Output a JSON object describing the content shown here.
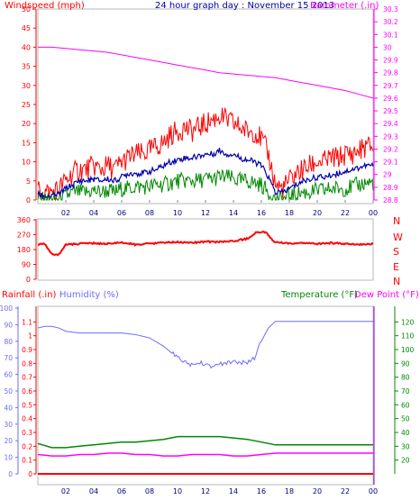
{
  "header": {
    "wind_label": "Windspeed (mph)",
    "title": "24 hour graph day : November 15 2013",
    "baro_label": "Barometer (.in)"
  },
  "colors": {
    "wind_gust": "#ff0000",
    "wind_avg": "#0000aa",
    "wind_low": "#008800",
    "barometer": "#ff00ff",
    "direction": "#ff0000",
    "rain": "#ff0000",
    "humidity": "#6b6bff",
    "temperature": "#008800",
    "dewpoint": "#ff00ff",
    "title": "#0000aa",
    "axis_purple": "#9900cc",
    "hour_labels": "#000088"
  },
  "panel2": {
    "compass": [
      "N",
      "W",
      "S",
      "E",
      "N"
    ]
  },
  "panel3": {
    "rain_label": "Rainfall (.in)",
    "hum_label": "Humidity (%)",
    "temp_label": "Temperature (°F)",
    "dew_label": "Dew Point (°F)"
  },
  "chart_data": [
    {
      "type": "line",
      "name": "wind-barometer",
      "x_labels": [
        "02",
        "04",
        "06",
        "08",
        "10",
        "12",
        "14",
        "16",
        "18",
        "20",
        "22",
        "00"
      ],
      "xlim": [
        0,
        24
      ],
      "y_left": {
        "ylim": [
          0,
          50
        ],
        "ticks": [
          0,
          5,
          10,
          15,
          20,
          25,
          30,
          35,
          40,
          45,
          50
        ]
      },
      "y_right": {
        "ylim": [
          28.8,
          30.3
        ],
        "ticks": [
          "28.8",
          "28.9",
          "29",
          "29.1",
          "29.2",
          "29.3",
          "29.4",
          "29.5",
          "29.6",
          "29.7",
          "29.8",
          "29.9",
          "30",
          "30.1",
          "30.2",
          "30.3"
        ]
      },
      "series": [
        {
          "name": "gust",
          "x": [
            0,
            0.5,
            1,
            1.5,
            2,
            2.5,
            3,
            3.5,
            4,
            4.5,
            5,
            5.5,
            6,
            6.5,
            7,
            7.5,
            8,
            8.5,
            9,
            9.5,
            10,
            10.5,
            11,
            11.5,
            12,
            12.5,
            13,
            13.5,
            14,
            14.5,
            15,
            15.5,
            16,
            16.5,
            17,
            17.5,
            18,
            18.5,
            19,
            19.5,
            20,
            20.5,
            21,
            21.5,
            22,
            22.5,
            23,
            23.5,
            24
          ],
          "values": [
            3,
            2,
            2,
            3,
            5,
            7,
            8,
            8,
            9,
            8,
            9,
            8,
            10,
            11,
            12,
            12,
            13,
            14,
            15,
            17,
            18,
            19,
            18,
            19,
            20,
            21,
            22,
            21,
            20,
            19,
            18,
            18,
            16,
            12,
            4,
            3,
            5,
            7,
            8,
            9,
            10,
            10,
            11,
            11,
            12,
            12,
            13,
            14,
            14
          ]
        },
        {
          "name": "average",
          "x": [
            0,
            0.5,
            1,
            1.5,
            2,
            2.5,
            3,
            3.5,
            4,
            4.5,
            5,
            5.5,
            6,
            6.5,
            7,
            7.5,
            8,
            8.5,
            9,
            9.5,
            10,
            10.5,
            11,
            11.5,
            12,
            12.5,
            13,
            13.5,
            14,
            14.5,
            15,
            15.5,
            16,
            16.5,
            17,
            17.5,
            18,
            18.5,
            19,
            19.5,
            20,
            20.5,
            21,
            21.5,
            22,
            22.5,
            23,
            23.5,
            24
          ],
          "values": [
            1.5,
            1,
            1,
            1.5,
            3,
            4,
            5,
            5,
            5.5,
            5,
            5.5,
            5,
            6,
            7,
            7,
            7,
            7.5,
            8,
            9,
            10,
            10.5,
            11,
            11,
            11.5,
            12,
            12,
            13,
            12,
            12,
            11,
            10.5,
            10,
            9,
            6,
            2,
            2,
            3,
            4,
            5,
            5.5,
            6,
            6,
            6.5,
            7,
            7.5,
            8,
            8.5,
            9,
            9
          ]
        },
        {
          "name": "low",
          "x": [
            0,
            0.5,
            1,
            1.5,
            2,
            2.5,
            3,
            3.5,
            4,
            4.5,
            5,
            5.5,
            6,
            6.5,
            7,
            7.5,
            8,
            8.5,
            9,
            9.5,
            10,
            10.5,
            11,
            11.5,
            12,
            12.5,
            13,
            13.5,
            14,
            14.5,
            15,
            15.5,
            16,
            16.5,
            17,
            17.5,
            18,
            18.5,
            19,
            19.5,
            20,
            20.5,
            21,
            21.5,
            22,
            22.5,
            23,
            23.5,
            24
          ],
          "values": [
            0,
            0,
            0,
            0,
            1,
            2,
            2,
            2,
            2.5,
            2,
            2.5,
            2,
            3,
            3,
            3.5,
            3.5,
            3.5,
            4,
            4,
            4.5,
            5,
            5,
            5,
            5,
            5.5,
            5.5,
            6,
            6,
            5.5,
            5,
            5,
            4.5,
            4,
            2,
            0,
            0,
            1,
            1.5,
            2,
            2,
            2.5,
            2.5,
            3,
            3,
            3,
            3.5,
            4,
            4.5,
            4.5
          ]
        },
        {
          "name": "barometer",
          "x": [
            0,
            1,
            2,
            3,
            4,
            5,
            6,
            7,
            8,
            9,
            10,
            11,
            12,
            13,
            14,
            15,
            16,
            17,
            18,
            19,
            20,
            21,
            22,
            23,
            24
          ],
          "values": [
            30.0,
            30.0,
            29.99,
            29.98,
            29.97,
            29.96,
            29.94,
            29.92,
            29.9,
            29.88,
            29.86,
            29.84,
            29.82,
            29.8,
            29.79,
            29.78,
            29.77,
            29.76,
            29.74,
            29.72,
            29.7,
            29.68,
            29.66,
            29.63,
            29.6
          ]
        }
      ]
    },
    {
      "type": "line",
      "name": "wind-direction",
      "x_labels": [
        "02",
        "04",
        "06",
        "08",
        "10",
        "12",
        "14",
        "16",
        "18",
        "20",
        "22",
        "00"
      ],
      "xlim": [
        0,
        24
      ],
      "ylim": [
        0,
        360
      ],
      "yticks": [
        0,
        90,
        180,
        270,
        360
      ],
      "series": [
        {
          "name": "direction",
          "x": [
            0,
            0.5,
            1,
            1.5,
            2,
            3,
            4,
            5,
            6,
            7,
            8,
            9,
            10,
            11,
            12,
            13,
            14,
            15,
            15.6,
            16,
            16.4,
            16.6,
            17,
            18,
            19,
            20,
            21,
            22,
            23,
            24
          ],
          "values": [
            210,
            215,
            150,
            150,
            210,
            215,
            218,
            215,
            222,
            210,
            215,
            222,
            225,
            220,
            228,
            226,
            232,
            245,
            282,
            285,
            285,
            250,
            225,
            215,
            218,
            215,
            220,
            215,
            212,
            215
          ]
        }
      ]
    },
    {
      "type": "line",
      "name": "rain-humidity-temperature",
      "x_labels": [
        "02",
        "04",
        "06",
        "08",
        "10",
        "12",
        "14",
        "16",
        "18",
        "20",
        "22",
        "00"
      ],
      "xlim": [
        0,
        24
      ],
      "y_rain": {
        "ylim": [
          0,
          1.2
        ],
        "ticks": [
          "0",
          "0.1",
          "0.2",
          "0.3",
          "0.4",
          "0.5",
          "0.6",
          "0.7",
          "0.8",
          "0.9",
          "1",
          "1.1"
        ]
      },
      "y_humidity": {
        "ylim": [
          0,
          100
        ],
        "ticks": [
          0,
          10,
          20,
          30,
          40,
          50,
          60,
          70,
          80,
          90,
          100
        ]
      },
      "y_temp": {
        "ylim": [
          10,
          130
        ],
        "ticks": [
          20,
          30,
          40,
          50,
          60,
          70,
          80,
          90,
          100,
          110,
          120
        ]
      },
      "series": [
        {
          "name": "humidity",
          "x": [
            0,
            0.5,
            1,
            1.5,
            2,
            3,
            4,
            5,
            6,
            7,
            8,
            9,
            10,
            10.5,
            11,
            12,
            12.5,
            13,
            14,
            15,
            15.5,
            16,
            16.5,
            17,
            18,
            19,
            20,
            21,
            22,
            23,
            24
          ],
          "values": [
            88,
            89,
            89,
            88,
            86,
            85,
            85,
            85,
            85,
            84,
            82,
            77,
            70,
            67,
            66,
            67,
            65,
            66,
            68,
            67,
            70,
            80,
            88,
            92,
            92,
            92,
            92,
            92,
            92,
            92,
            92
          ]
        },
        {
          "name": "temperature",
          "x": [
            0,
            1,
            2,
            3,
            4,
            5,
            6,
            7,
            8,
            9,
            10,
            11,
            12,
            13,
            14,
            15,
            16,
            17,
            18,
            19,
            20,
            21,
            22,
            23,
            24
          ],
          "values": [
            32,
            29,
            29,
            30,
            31,
            32,
            33,
            33,
            34,
            35,
            37,
            37,
            37,
            37,
            36,
            35,
            33,
            31,
            31,
            31,
            31,
            31,
            31,
            31,
            31
          ]
        },
        {
          "name": "dewpoint",
          "x": [
            0,
            1,
            2,
            3,
            4,
            5,
            6,
            7,
            8,
            9,
            10,
            11,
            12,
            13,
            14,
            15,
            16,
            17,
            18,
            19,
            20,
            21,
            22,
            23,
            24
          ],
          "values": [
            24,
            23,
            23,
            24,
            24,
            25,
            25,
            24,
            24,
            23,
            23,
            24,
            24,
            24,
            23,
            23,
            24,
            25,
            25,
            25,
            25,
            25,
            25,
            25,
            25
          ]
        },
        {
          "name": "rain",
          "x": [
            0,
            24
          ],
          "values": [
            0,
            0
          ]
        }
      ]
    }
  ]
}
